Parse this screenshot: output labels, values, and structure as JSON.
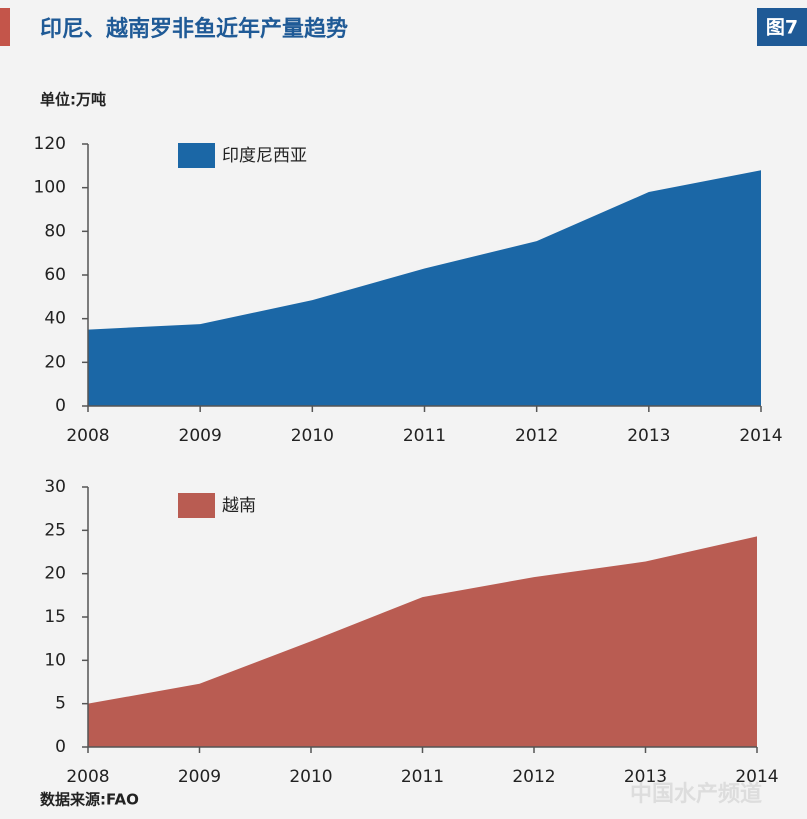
{
  "header": {
    "title": "印尼、越南罗非鱼近年产量趋势",
    "figure_label": "图7"
  },
  "unit": "单位:万吨",
  "source": "数据来源:FAO",
  "watermark": "中国水产频道",
  "chart_data": [
    {
      "type": "area",
      "x": [
        2008,
        2009,
        2010,
        2011,
        2012,
        2013,
        2014
      ],
      "series": [
        {
          "name": "印度尼西亚",
          "color": "#1b67a6",
          "values": [
            35,
            37.5,
            48.5,
            63,
            75.5,
            98,
            108
          ]
        }
      ],
      "xlim": [
        2008,
        2014
      ],
      "xticks": [
        2008,
        2009,
        2010,
        2011,
        2012,
        2013,
        2014
      ],
      "ylim": [
        0,
        120
      ],
      "yticks": [
        0,
        20,
        40,
        60,
        80,
        100,
        120
      ]
    },
    {
      "type": "area",
      "x": [
        2008,
        2009,
        2010,
        2011,
        2012,
        2013,
        2014
      ],
      "series": [
        {
          "name": "越南",
          "color": "#b95c52",
          "values": [
            5,
            7.3,
            12.2,
            17.3,
            19.6,
            21.4,
            24.3
          ]
        }
      ],
      "xlim": [
        2008,
        2014
      ],
      "xticks": [
        2008,
        2009,
        2010,
        2011,
        2012,
        2013,
        2014
      ],
      "ylim": [
        0,
        30
      ],
      "yticks": [
        0,
        5,
        10,
        15,
        20,
        25,
        30
      ]
    }
  ]
}
